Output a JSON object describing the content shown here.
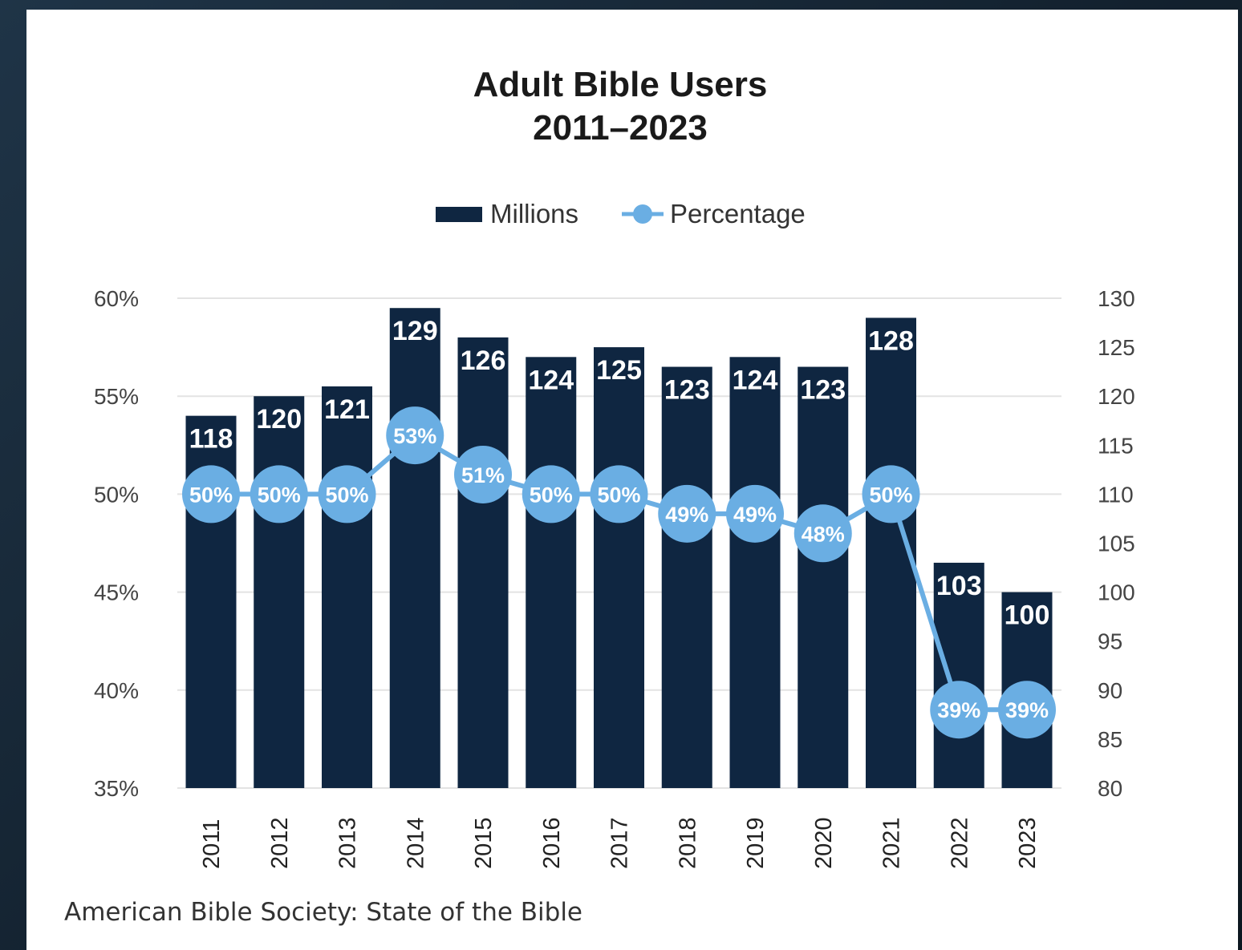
{
  "chart_data": {
    "type": "bar",
    "title_lines": [
      "Adult Bible Users",
      "2011–2023"
    ],
    "categories": [
      "2011",
      "2012",
      "2013",
      "2014",
      "2015",
      "2016",
      "2017",
      "2018",
      "2019",
      "2020",
      "2021",
      "2022",
      "2023"
    ],
    "series": [
      {
        "name": "Millions",
        "type": "bar",
        "axis": "right",
        "values": [
          118,
          120,
          121,
          129,
          126,
          124,
          125,
          123,
          124,
          123,
          128,
          103,
          100
        ],
        "labels": [
          "118",
          "120",
          "121",
          "129",
          "126",
          "124",
          "125",
          "123",
          "124",
          "123",
          "128",
          "103",
          "100"
        ],
        "color": "#0f2641"
      },
      {
        "name": "Percentage",
        "type": "line",
        "axis": "left",
        "values": [
          50,
          50,
          50,
          53,
          51,
          50,
          50,
          49,
          49,
          48,
          50,
          39,
          39
        ],
        "labels": [
          "50%",
          "50%",
          "50%",
          "53%",
          "51%",
          "50%",
          "50%",
          "49%",
          "49%",
          "48%",
          "50%",
          "39%",
          "39%"
        ],
        "color": "#6aaee3"
      }
    ],
    "y_left": {
      "ylim": [
        35,
        60
      ],
      "ticks": [
        60,
        55,
        50,
        45,
        40,
        35
      ],
      "tick_labels": [
        "60%",
        "55%",
        "50%",
        "45%",
        "40%",
        "35%"
      ]
    },
    "y_right": {
      "ylim": [
        80,
        130
      ],
      "ticks": [
        130,
        125,
        120,
        115,
        110,
        105,
        100,
        95,
        90,
        85,
        80
      ],
      "tick_labels": [
        "130",
        "125",
        "120",
        "115",
        "110",
        "105",
        "100",
        "95",
        "90",
        "85",
        "80"
      ]
    },
    "grid": true,
    "legend_position": "top-center",
    "x_tick_rotation": "vertical"
  },
  "source": "American Bible Society: State of the Bible"
}
